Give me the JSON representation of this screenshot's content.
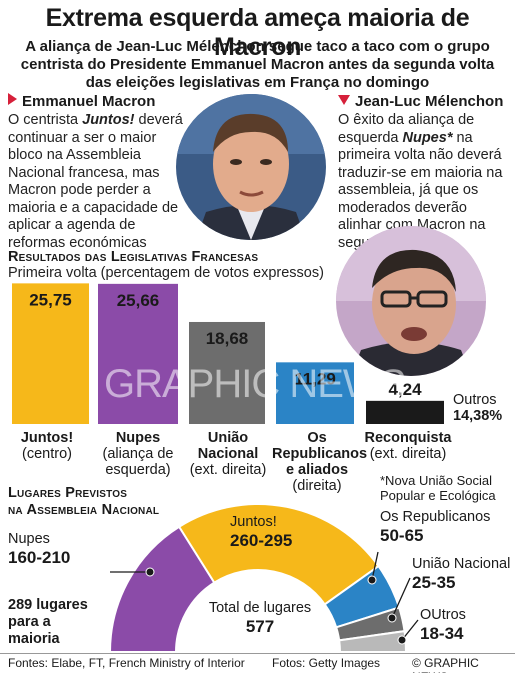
{
  "header": {
    "title": "Extrema esquerda ameça maioria de Macron",
    "subtitle": "A aliança de Jean-Luc Mélenchon segue taco a taco com o grupo centrista do Presidente Emmanuel Macron antes da segunda volta das eleições legislativas em França no domingo"
  },
  "macron": {
    "name": "Emmanuel Macron",
    "text_before": "O centrista ",
    "party": "Juntos!",
    "text_after": " deverá continuar a ser o maior bloco na Assembleia Nacional francesa, mas Macron pode perder a maioria e a capacidade de aplicar a agenda de reformas económicas"
  },
  "melenchon": {
    "name": "Jean-Luc Mélenchon",
    "text_before": "O êxito da aliança de esquerda ",
    "party": "Nupes*",
    "text_after": " na primeira volta não deverá traduzir-se em maioria na assembleia, já que os moderados deverão alinhar com Macron na segunda volta"
  },
  "results": {
    "title": "Resultados das Legislativas Francesas",
    "subtitle": "Primeira volta (percentagem de votos expressos)",
    "others_label": "Outros",
    "others_value": "14,38%",
    "footnote": "*Nova União Social Popular e Ecológica"
  },
  "seats": {
    "title_line1": "Lugares Previstos",
    "title_line2": "na Assembleia Nacional",
    "majority": "289 lugares para a maioria",
    "total_label": "Total de lugares",
    "total_value": "577"
  },
  "footer": {
    "sources": "Fontes: Elabe, FT, French Ministry of Interior",
    "photos": "Fotos: Getty Images",
    "credit": "© GRAPHIC NEWS"
  },
  "watermark": "GRAPHIC NEWS",
  "chart_data": [
    {
      "type": "bar",
      "title": "Resultados das Legislativas Francesas",
      "subtitle": "Primeira volta (percentagem de votos expressos)",
      "ylim": [
        0,
        26
      ],
      "bars": [
        {
          "name": "Juntos!",
          "detail": "(centro)",
          "value": 25.75,
          "label": "25,75",
          "color": "#f6b81a"
        },
        {
          "name": "Nupes",
          "detail": "(aliança de esquerda)",
          "value": 25.66,
          "label": "25,66",
          "color": "#8b4ba8"
        },
        {
          "name": "União Nacional",
          "detail": "(ext. direita)",
          "value": 18.68,
          "label": "18,68",
          "color": "#6d6d6d"
        },
        {
          "name": "Os Republicanos e aliados",
          "detail": "(direita)",
          "value": 11.29,
          "label": "11,29",
          "color": "#2b84c6"
        },
        {
          "name": "Reconquista",
          "detail": "(ext. direita)",
          "value": 4.24,
          "label": "4,24",
          "color": "#1a1a1a"
        }
      ],
      "others": {
        "label": "Outros",
        "value": 14.38
      }
    },
    {
      "type": "pie",
      "title": "Lugares Previstos na Assembleia Nacional",
      "total": 577,
      "majority": 289,
      "segments": [
        {
          "name": "Nupes",
          "range": "160-210",
          "value": 185,
          "color": "#8b4ba8"
        },
        {
          "name": "Juntos!",
          "range": "260-295",
          "value": 277.5,
          "color": "#f6b81a"
        },
        {
          "name": "Os Republicanos",
          "range": "50-65",
          "value": 57.5,
          "color": "#2b84c6"
        },
        {
          "name": "União Nacional",
          "range": "25-35",
          "value": 30,
          "color": "#6d6d6d"
        },
        {
          "name": "OUtros",
          "range": "18-34",
          "value": 26,
          "color": "#b9b9b9"
        }
      ]
    }
  ]
}
